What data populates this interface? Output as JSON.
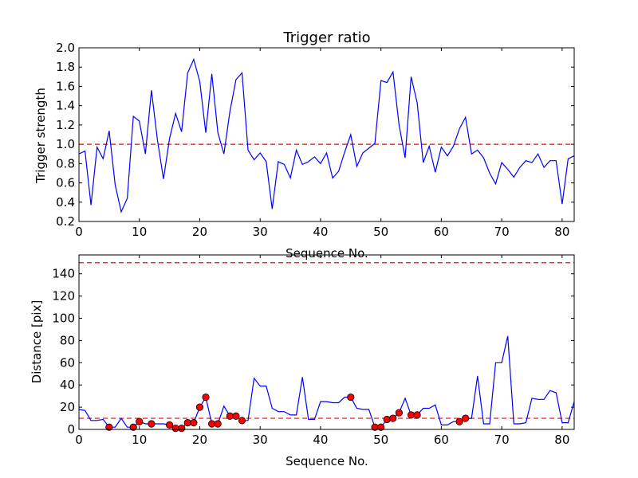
{
  "chart_data": [
    {
      "type": "line",
      "title": "Trigger ratio",
      "xlabel": "Sequence No.",
      "ylabel": "Trigger strength",
      "xlim": [
        0,
        82
      ],
      "ylim": [
        0.2,
        2.0
      ],
      "xticks": [
        "0",
        "10",
        "20",
        "30",
        "40",
        "50",
        "60",
        "70",
        "80"
      ],
      "yticks": [
        "0.2",
        "0.4",
        "0.6",
        "0.8",
        "1.0",
        "1.2",
        "1.4",
        "1.6",
        "1.8",
        "2.0"
      ],
      "grid": false,
      "threshold": {
        "value": 1.0,
        "color": "#ff0000",
        "style": "dashed"
      },
      "series": [
        {
          "color": "#0000ff",
          "x": [
            0,
            1,
            2,
            3,
            4,
            5,
            6,
            7,
            8,
            9,
            10,
            11,
            12,
            13,
            14,
            15,
            16,
            17,
            18,
            19,
            20,
            21,
            22,
            23,
            24,
            25,
            26,
            27,
            28,
            29,
            30,
            31,
            32,
            33,
            34,
            35,
            36,
            37,
            38,
            39,
            40,
            41,
            42,
            43,
            44,
            45,
            46,
            47,
            48,
            49,
            50,
            51,
            52,
            53,
            54,
            55,
            56,
            57,
            58,
            59,
            60,
            61,
            62,
            63,
            64,
            65,
            66,
            67,
            68,
            69,
            70,
            71,
            72,
            73,
            74,
            75,
            76,
            77,
            78,
            79,
            80,
            81,
            82
          ],
          "values": [
            0.9,
            0.93,
            0.37,
            0.97,
            0.85,
            1.14,
            0.58,
            0.3,
            0.44,
            1.29,
            1.24,
            0.9,
            1.56,
            1.04,
            0.64,
            1.06,
            1.32,
            1.13,
            1.74,
            1.88,
            1.65,
            1.12,
            1.73,
            1.12,
            0.9,
            1.34,
            1.67,
            1.74,
            0.94,
            0.84,
            0.91,
            0.82,
            0.33,
            0.82,
            0.79,
            0.65,
            0.94,
            0.79,
            0.82,
            0.87,
            0.8,
            0.91,
            0.65,
            0.72,
            0.92,
            1.1,
            0.77,
            0.91,
            0.96,
            1.01,
            1.66,
            1.64,
            1.75,
            1.2,
            0.86,
            1.7,
            1.43,
            0.81,
            0.98,
            0.71,
            0.97,
            0.88,
            0.98,
            1.16,
            1.28,
            0.9,
            0.94,
            0.86,
            0.7,
            0.59,
            0.81,
            0.74,
            0.66,
            0.76,
            0.83,
            0.81,
            0.9,
            0.76,
            0.83,
            0.83,
            0.38,
            0.85,
            0.88
          ]
        }
      ]
    },
    {
      "type": "line",
      "title": "",
      "xlabel": "Sequence No.",
      "ylabel": "Distance [pix]",
      "xlim": [
        0,
        82
      ],
      "ylim": [
        0,
        157
      ],
      "xticks": [
        "0",
        "10",
        "20",
        "30",
        "40",
        "50",
        "60",
        "70",
        "80"
      ],
      "yticks": [
        "0",
        "20",
        "40",
        "60",
        "80",
        "100",
        "120",
        "140"
      ],
      "grid": false,
      "thresholds": [
        {
          "value": 10,
          "color": "#ff0000",
          "style": "dashed"
        },
        {
          "value": 150,
          "color": "#ff0000",
          "style": "dashed"
        }
      ],
      "series": [
        {
          "color": "#0000ff",
          "x": [
            0,
            1,
            2,
            3,
            4,
            5,
            6,
            7,
            8,
            9,
            10,
            11,
            12,
            13,
            14,
            15,
            16,
            17,
            18,
            19,
            20,
            21,
            22,
            23,
            24,
            25,
            26,
            27,
            28,
            29,
            30,
            31,
            32,
            33,
            34,
            35,
            36,
            37,
            38,
            39,
            40,
            41,
            42,
            43,
            44,
            45,
            46,
            47,
            48,
            49,
            50,
            51,
            52,
            53,
            54,
            55,
            56,
            57,
            58,
            59,
            60,
            61,
            62,
            63,
            64,
            65,
            66,
            67,
            68,
            69,
            70,
            71,
            72,
            73,
            74,
            75,
            76,
            77,
            78,
            79,
            80,
            81,
            82
          ],
          "values": [
            18,
            17,
            8,
            8,
            9,
            2,
            2,
            10,
            2,
            2,
            7,
            5,
            5,
            5,
            5,
            4,
            1,
            1,
            6,
            6,
            20,
            29,
            5,
            5,
            21,
            12,
            12,
            8,
            8,
            46,
            39,
            39,
            19,
            16,
            16,
            13,
            13,
            47,
            9,
            9,
            25,
            25,
            24,
            24,
            29,
            29,
            19,
            18,
            18,
            2,
            2,
            9,
            10,
            15,
            28,
            13,
            13,
            19,
            19,
            22,
            4,
            4,
            7,
            7,
            10,
            10,
            48,
            5,
            5,
            60,
            60,
            84,
            5,
            5,
            6,
            28,
            27,
            27,
            35,
            33,
            6,
            6,
            25
          ]
        }
      ],
      "markers": {
        "color": "#ff0000",
        "x": [
          5,
          9,
          10,
          12,
          15,
          16,
          17,
          18,
          19,
          20,
          21,
          22,
          23,
          25,
          26,
          27,
          45,
          49,
          50,
          51,
          52,
          53,
          55,
          56,
          63,
          64
        ],
        "y": [
          2,
          2,
          7,
          5,
          4,
          1,
          1,
          6,
          6,
          20,
          29,
          5,
          5,
          12,
          12,
          8,
          29,
          2,
          2,
          9,
          10,
          15,
          13,
          13,
          7,
          10
        ]
      }
    }
  ]
}
